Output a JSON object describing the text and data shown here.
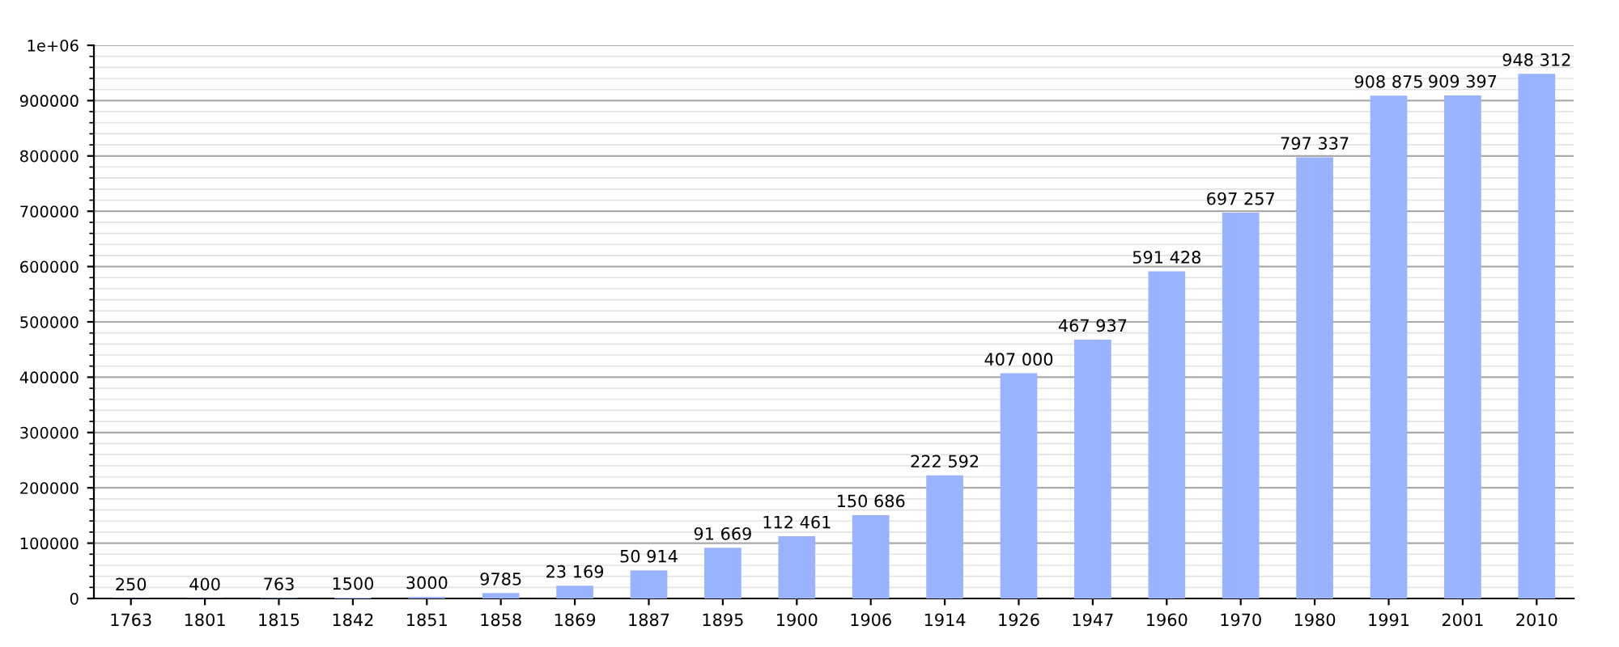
{
  "chart_data": {
    "type": "bar",
    "categories": [
      "1763",
      "1801",
      "1815",
      "1842",
      "1851",
      "1858",
      "1869",
      "1887",
      "1895",
      "1900",
      "1906",
      "1914",
      "1926",
      "1947",
      "1960",
      "1970",
      "1980",
      "1991",
      "2001",
      "2010"
    ],
    "values": [
      250,
      400,
      763,
      1500,
      3000,
      9785,
      23169,
      50914,
      91669,
      112461,
      150686,
      222592,
      407000,
      467937,
      591428,
      697257,
      797337,
      908875,
      909397,
      948312
    ],
    "value_labels": [
      "250",
      "400",
      "763",
      "1500",
      "3000",
      "9785",
      "23 169",
      "50 914",
      "91 669",
      "112 461",
      "150 686",
      "222 592",
      "407 000",
      "467 937",
      "591 428",
      "697 257",
      "797 337",
      "908 875",
      "909 397",
      "948 312"
    ],
    "color": "#99b3ff",
    "ylim": [
      0,
      1000000
    ],
    "yticks": [
      0,
      100000,
      200000,
      300000,
      400000,
      500000,
      600000,
      700000,
      800000,
      900000,
      {
        "value": 1000000,
        "label": "1e+06"
      }
    ],
    "grid": "y",
    "legend": false
  }
}
